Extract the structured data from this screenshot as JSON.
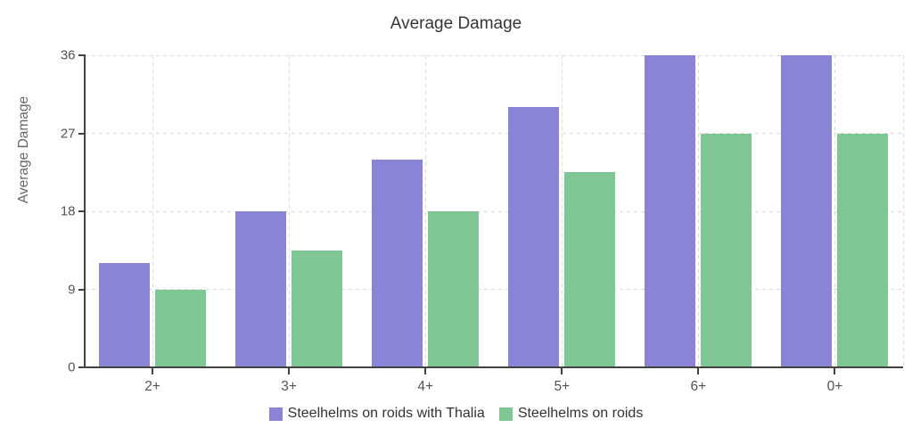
{
  "chart": {
    "title": "Average Damage",
    "y_axis_title": "Average Damage"
  },
  "chart_data": {
    "type": "bar",
    "title": "Average Damage",
    "categories": [
      "2+",
      "3+",
      "4+",
      "5+",
      "6+",
      "0+"
    ],
    "series": [
      {
        "name": "Steelhelms on roids with Thalia",
        "color": "#8984d6",
        "values": [
          12,
          18,
          24,
          30,
          36,
          36
        ]
      },
      {
        "name": "Steelhelms on roids",
        "color": "#80c796",
        "values": [
          9,
          13.5,
          18,
          22.5,
          27,
          27
        ]
      }
    ],
    "xlabel": "",
    "ylabel": "Average Damage",
    "ylim": [
      0,
      36
    ],
    "yticks": [
      0,
      9,
      18,
      27,
      36
    ],
    "grid": true,
    "grid_style": "dashed",
    "legend_position": "bottom"
  },
  "style": {
    "grid_color": "#dcdcdc",
    "axis_color": "#424242",
    "tick_label_color": "#545454",
    "title_color": "#363636",
    "axis_title_color": "#666666",
    "legend_text_color": "#333333",
    "background_color": "#ffffff"
  }
}
